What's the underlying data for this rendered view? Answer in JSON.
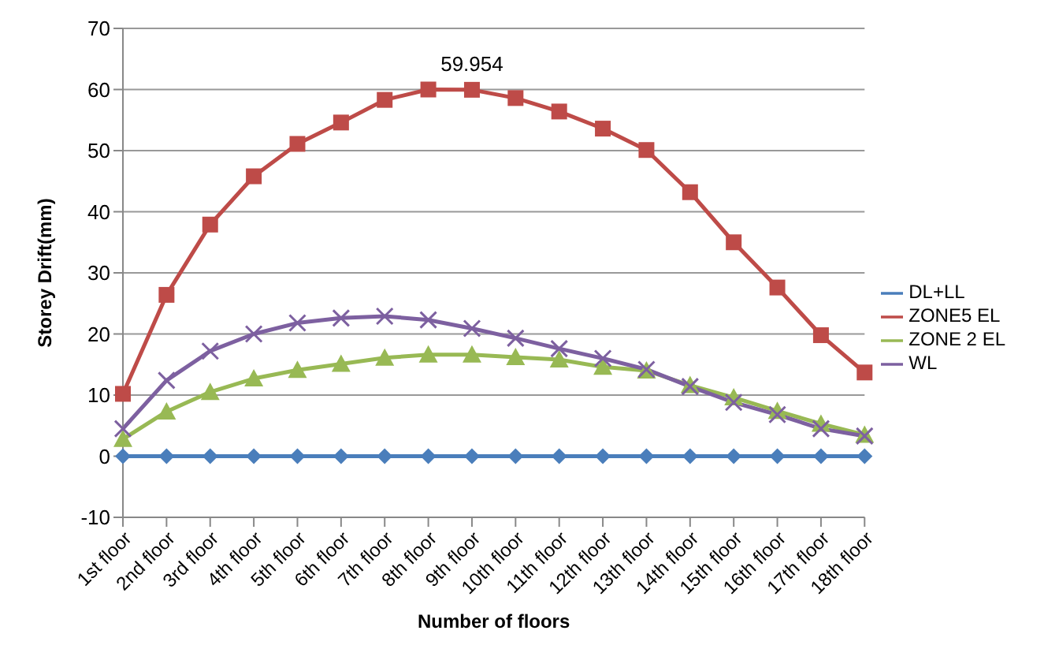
{
  "chart_data": {
    "type": "line",
    "xlabel": "Number of floors",
    "ylabel": "Storey Drift(mm)",
    "categories": [
      "1st floor",
      "2nd floor",
      "3rd floor",
      "4th floor",
      "5th floor",
      "6th floor",
      "7th floor",
      "8th floor",
      "9th floor",
      "10th floor",
      "11th floor",
      "12th floor",
      "13th floor",
      "14th floor",
      "15th floor",
      "16th floor",
      "17th floor",
      "18th floor"
    ],
    "series": [
      {
        "name": "DL+LL",
        "color": "#4a7ebb",
        "marker": "diamond",
        "values": [
          0,
          0,
          0,
          0,
          0,
          0,
          0,
          0,
          0,
          0,
          0,
          0,
          0,
          0,
          0,
          0,
          0,
          0
        ]
      },
      {
        "name": "ZONE5 EL",
        "color": "#be4b48",
        "marker": "square",
        "values": [
          10.2,
          26.4,
          37.9,
          45.8,
          51.1,
          54.6,
          58.3,
          60.0,
          59.954,
          58.6,
          56.4,
          53.6,
          50.1,
          43.2,
          35.0,
          27.6,
          19.8,
          13.7
        ],
        "value_labels": [
          null,
          null,
          null,
          null,
          null,
          null,
          null,
          null,
          "59.954",
          null,
          null,
          null,
          null,
          null,
          null,
          null,
          null,
          null
        ]
      },
      {
        "name": "ZONE 2 EL",
        "color": "#98b954",
        "marker": "triangle",
        "values": [
          2.8,
          7.3,
          10.5,
          12.7,
          14.1,
          15.1,
          16.1,
          16.6,
          16.6,
          16.2,
          15.8,
          14.6,
          14.0,
          11.6,
          9.6,
          7.4,
          5.3,
          3.5
        ]
      },
      {
        "name": "WL",
        "color": "#7d60a0",
        "marker": "cross",
        "values": [
          4.5,
          12.4,
          17.2,
          20.0,
          21.8,
          22.6,
          22.9,
          22.3,
          20.9,
          19.3,
          17.6,
          16.0,
          14.2,
          11.4,
          8.8,
          6.8,
          4.5,
          3.3
        ]
      }
    ],
    "ylim": [
      -10,
      70
    ],
    "yticks": [
      -10,
      0,
      10,
      20,
      30,
      40,
      50,
      60,
      70
    ],
    "grid": "y",
    "legend": "right"
  }
}
